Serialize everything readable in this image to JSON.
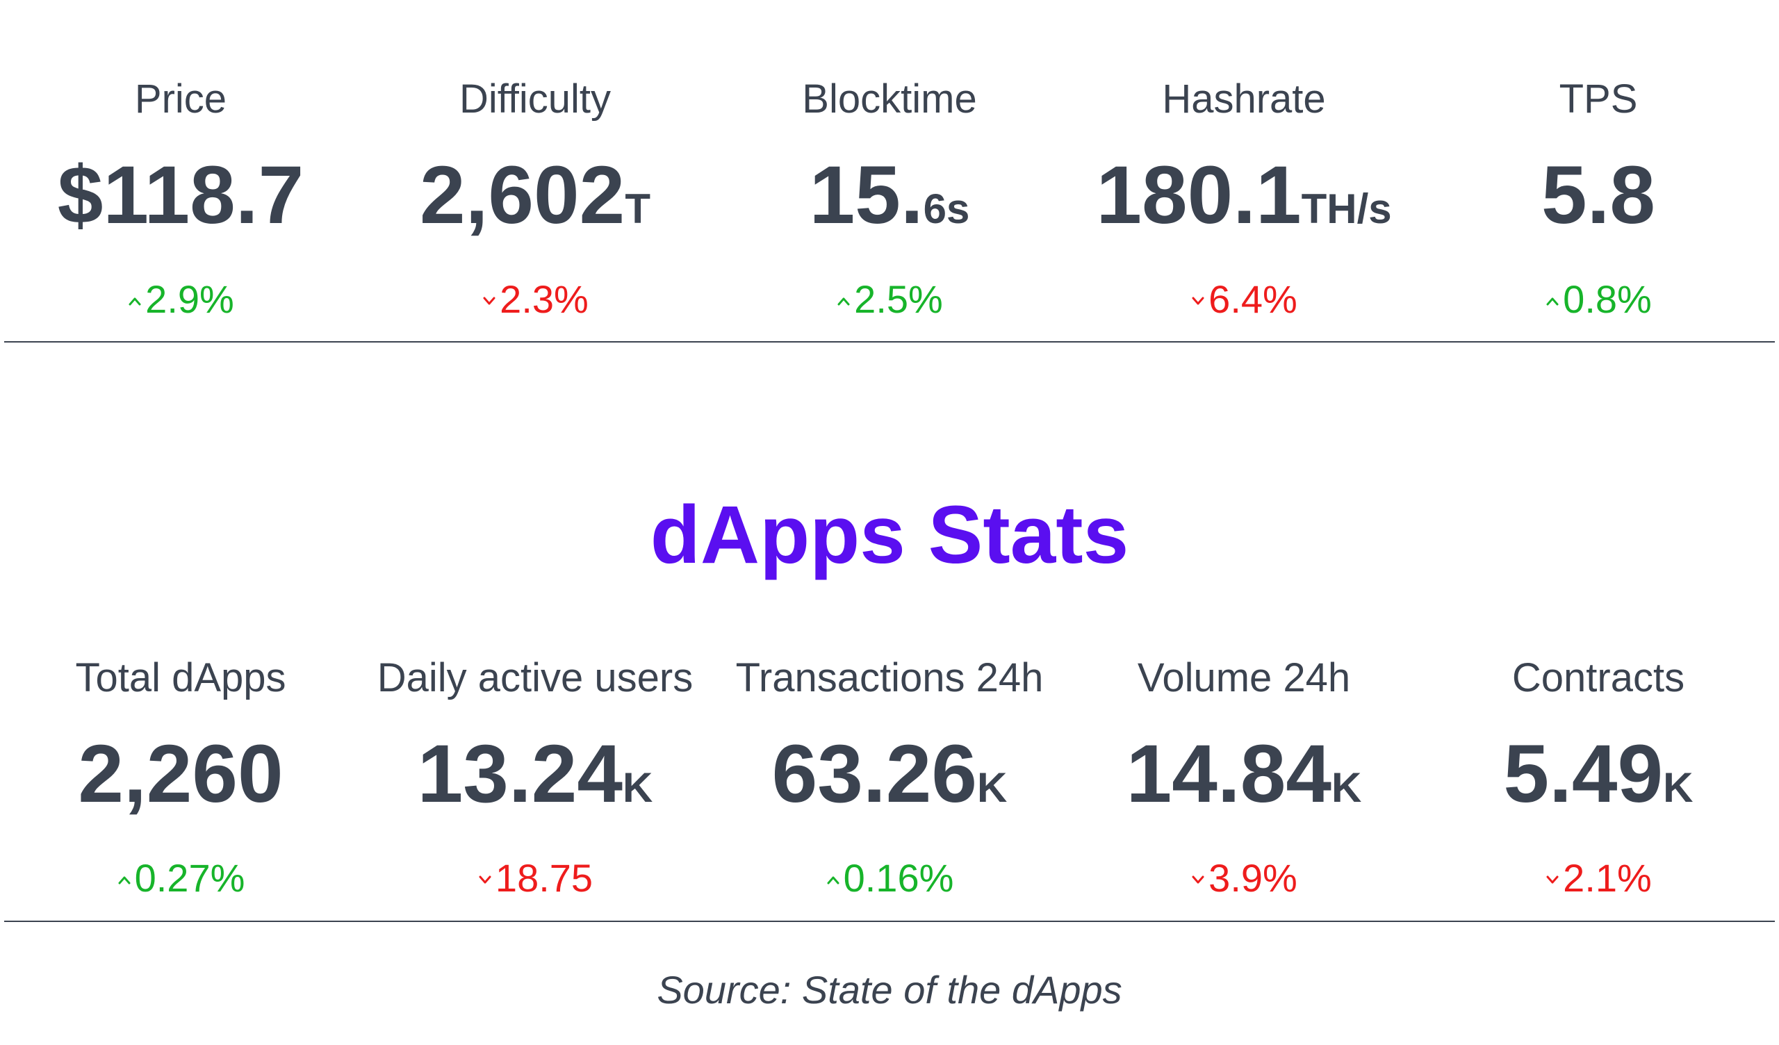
{
  "network_stats": [
    {
      "label": "Price",
      "value": "$118.7",
      "unit": "",
      "change": "2.9%",
      "direction": "up"
    },
    {
      "label": "Difficulty",
      "value": "2,602",
      "unit": "T",
      "change": "2.3%",
      "direction": "down"
    },
    {
      "label": "Blocktime",
      "value": "15.",
      "unit": "6s",
      "change": "2.5%",
      "direction": "up"
    },
    {
      "label": "Hashrate",
      "value": "180.1",
      "unit": "TH/s",
      "change": "6.4%",
      "direction": "down"
    },
    {
      "label": "TPS",
      "value": "5.8",
      "unit": "",
      "change": "0.8%",
      "direction": "up"
    }
  ],
  "section_title": "dApps Stats",
  "dapps_stats": [
    {
      "label": "Total dApps",
      "value": "2,260",
      "unit": "",
      "change": "0.27%",
      "direction": "up"
    },
    {
      "label": "Daily active users",
      "value": "13.24",
      "unit": "K",
      "change": "18.75",
      "direction": "down"
    },
    {
      "label": "Transactions 24h",
      "value": "63.26",
      "unit": "K",
      "change": "0.16%",
      "direction": "up"
    },
    {
      "label": "Volume 24h",
      "value": "14.84",
      "unit": "K",
      "change": "3.9%",
      "direction": "down"
    },
    {
      "label": "Contracts",
      "value": "5.49",
      "unit": "K",
      "change": "2.1%",
      "direction": "down"
    }
  ],
  "source": "Source: State of the dApps",
  "colors": {
    "text": "#3b4350",
    "up": "#17b42a",
    "down": "#ee1c1c",
    "accent": "#5a0ff0"
  },
  "icons": {
    "up": "caret-up-icon",
    "down": "caret-down-icon"
  }
}
